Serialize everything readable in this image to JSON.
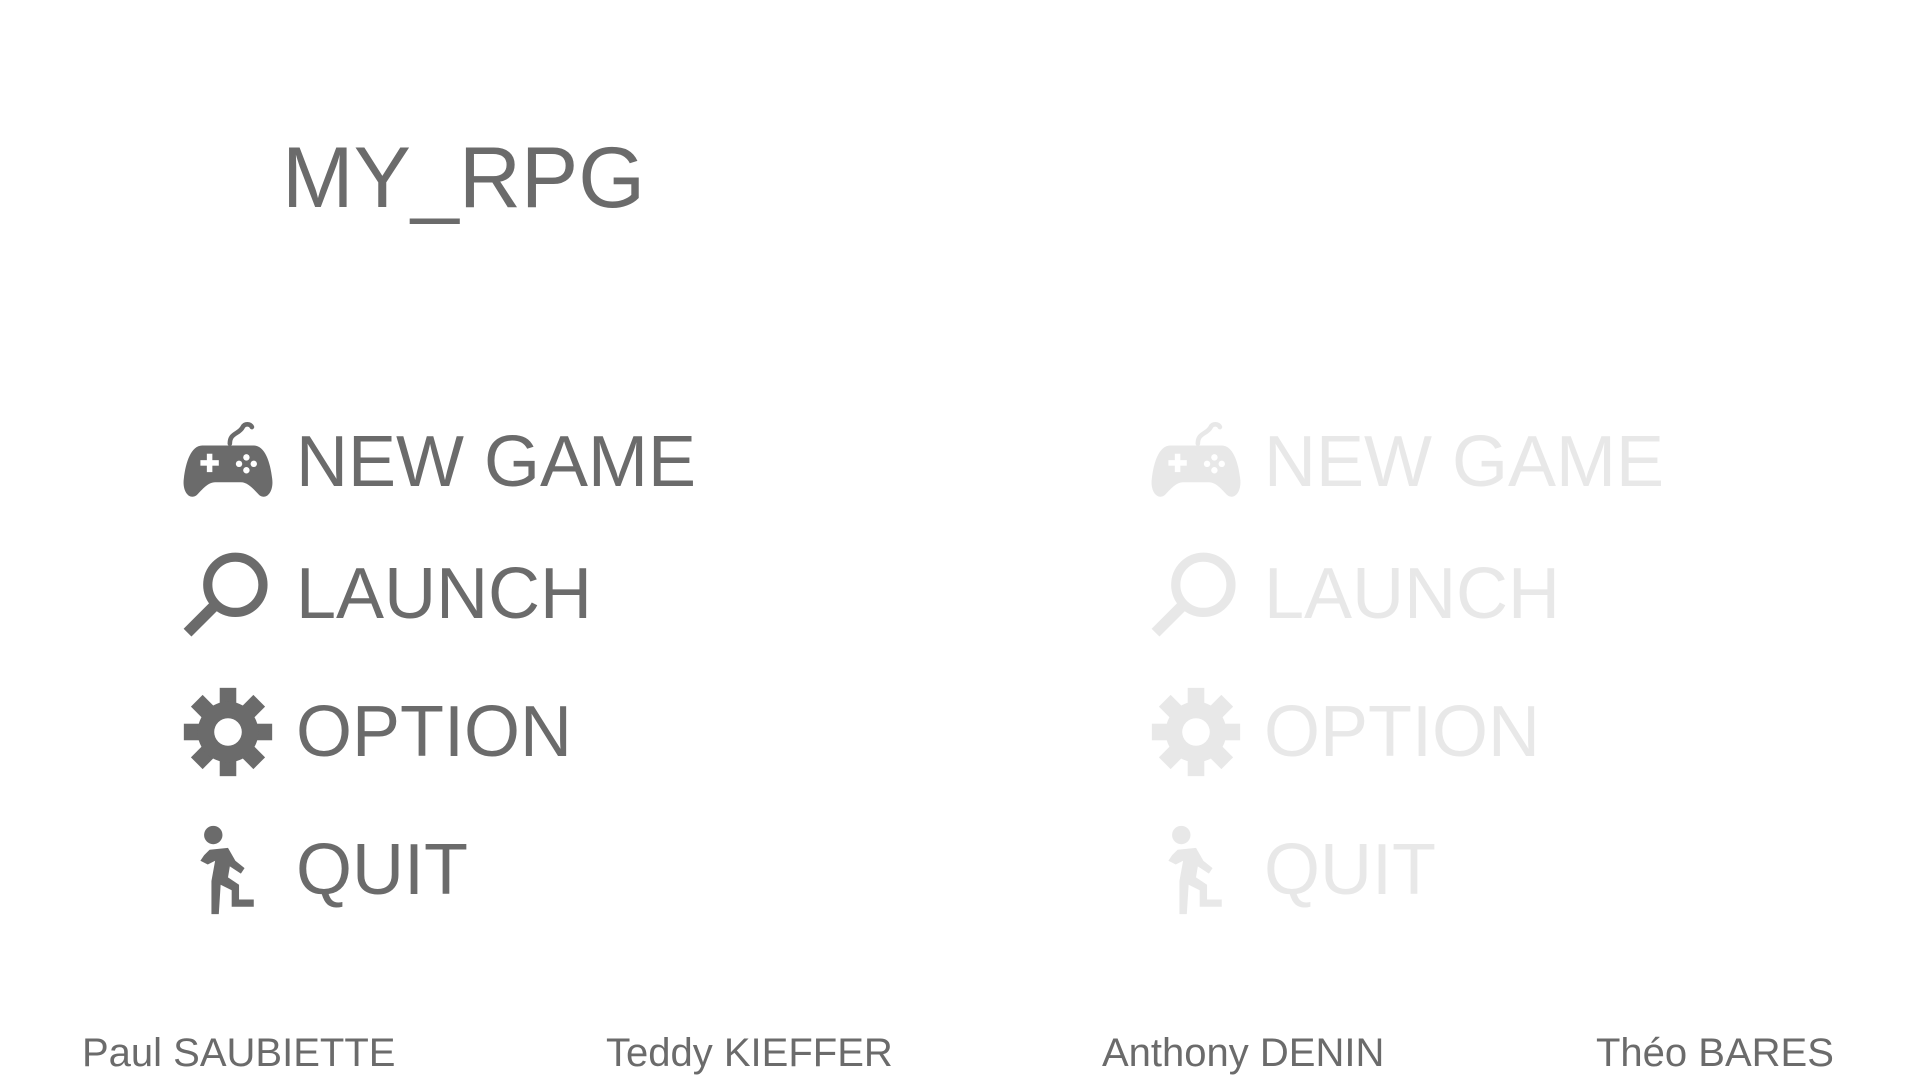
{
  "game": {
    "title": "MY_RPG"
  },
  "menu_primary": {
    "items": [
      {
        "label": "NEW GAME",
        "icon": "gamepad-icon"
      },
      {
        "label": "LAUNCH",
        "icon": "search-icon"
      },
      {
        "label": "OPTION",
        "icon": "gear-icon"
      },
      {
        "label": "QUIT",
        "icon": "running-man-icon"
      }
    ]
  },
  "menu_faded": {
    "items": [
      {
        "label": "NEW GAME",
        "icon": "gamepad-icon"
      },
      {
        "label": "LAUNCH",
        "icon": "search-icon"
      },
      {
        "label": "OPTION",
        "icon": "gear-icon"
      },
      {
        "label": "QUIT",
        "icon": "running-man-icon"
      }
    ]
  },
  "credits": [
    "Paul SAUBIETTE",
    "Teddy KIEFFER",
    "Anthony DENIN",
    "Théo BARES"
  ],
  "colors": {
    "background": "#ffffff",
    "text": "#6b6b6b",
    "faded": "#e8e8e8"
  }
}
